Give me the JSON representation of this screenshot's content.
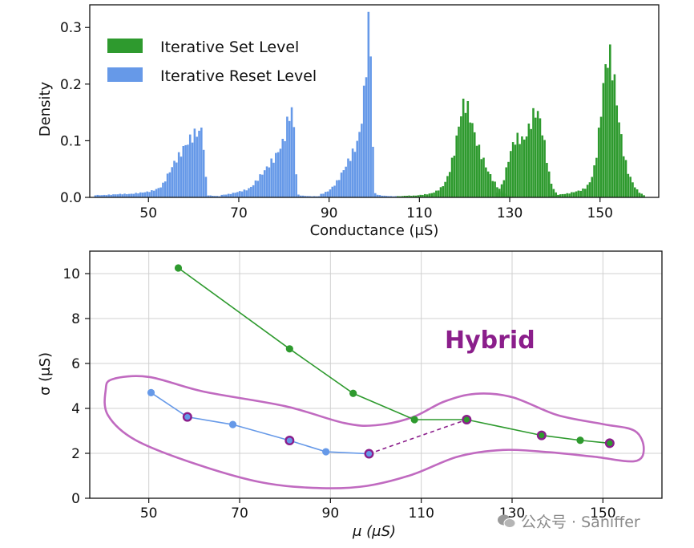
{
  "chart_data": [
    {
      "type": "bar",
      "subtype": "histogram",
      "xlabel": "Conductance (μS)",
      "ylabel": "Density",
      "xlim": [
        37,
        163
      ],
      "ylim": [
        0,
        0.34
      ],
      "xticks": [
        50,
        70,
        90,
        110,
        130,
        150
      ],
      "yticks": [
        0.0,
        0.1,
        0.2,
        0.3
      ],
      "ytick_labels": [
        "0.0",
        "0.1",
        "0.2",
        "0.3"
      ],
      "legend": {
        "placement": "top-left",
        "entries": [
          "Iterative Set Level",
          "Iterative Reset Level"
        ]
      },
      "bin_width": 0.5,
      "series": [
        {
          "name": "Iterative Set Level",
          "color": "#2e9a2e",
          "peaks": [
            {
              "x": [
                105,
                106,
                107,
                108,
                109,
                110,
                111,
                112,
                113,
                114,
                115,
                116,
                117,
                118,
                119,
                120,
                121,
                122,
                123,
                124,
                125,
                126,
                127,
                128,
                129,
                130
              ],
              "y": [
                0.002,
                0.002,
                0.003,
                0.003,
                0.003,
                0.004,
                0.005,
                0.006,
                0.008,
                0.012,
                0.018,
                0.03,
                0.055,
                0.09,
                0.14,
                0.17,
                0.15,
                0.12,
                0.09,
                0.07,
                0.05,
                0.035,
                0.022,
                0.012,
                0.006,
                0.003
              ]
            },
            {
              "x": [
                127,
                128,
                129,
                130,
                131,
                132,
                133,
                134,
                135,
                136,
                137,
                138,
                139,
                140,
                141
              ],
              "y": [
                0.006,
                0.015,
                0.04,
                0.075,
                0.1,
                0.105,
                0.1,
                0.115,
                0.14,
                0.155,
                0.13,
                0.08,
                0.03,
                0.01,
                0.003
              ]
            },
            {
              "x": [
                139,
                140,
                141,
                142,
                143,
                144,
                145,
                146,
                147,
                148,
                149,
                150,
                151,
                152,
                153,
                154,
                155,
                156,
                157,
                158,
                159,
                160
              ],
              "y": [
                0.003,
                0.004,
                0.005,
                0.006,
                0.007,
                0.009,
                0.011,
                0.013,
                0.018,
                0.03,
                0.06,
                0.13,
                0.22,
                0.255,
                0.22,
                0.15,
                0.09,
                0.05,
                0.03,
                0.015,
                0.007,
                0.003
              ]
            }
          ]
        },
        {
          "name": "Iterative Reset Level",
          "color": "#6699e8",
          "peaks": [
            {
              "x": [
                38,
                40,
                42,
                44,
                46,
                48,
                50,
                51,
                52,
                53,
                54,
                55,
                56,
                57,
                58,
                59,
                60,
                61,
                62,
                63,
                64,
                66
              ],
              "y": [
                0.004,
                0.004,
                0.005,
                0.006,
                0.006,
                0.008,
                0.01,
                0.012,
                0.015,
                0.02,
                0.035,
                0.05,
                0.065,
                0.075,
                0.09,
                0.1,
                0.11,
                0.115,
                0.12,
                0.004,
                0.003,
                0.002
              ]
            },
            {
              "x": [
                66,
                68,
                70,
                72,
                73,
                74,
                75,
                76,
                77,
                78,
                79,
                80,
                81,
                82,
                83,
                84,
                86,
                88
              ],
              "y": [
                0.004,
                0.006,
                0.01,
                0.014,
                0.02,
                0.03,
                0.04,
                0.05,
                0.06,
                0.07,
                0.085,
                0.1,
                0.14,
                0.16,
                0.005,
                0.003,
                0.002,
                0.002
              ]
            },
            {
              "x": [
                88,
                89,
                90,
                91,
                92,
                93,
                94,
                95,
                96,
                97,
                98,
                99,
                100,
                101,
                102,
                104,
                106
              ],
              "y": [
                0.005,
                0.008,
                0.012,
                0.02,
                0.03,
                0.045,
                0.06,
                0.075,
                0.09,
                0.12,
                0.2,
                0.34,
                0.008,
                0.004,
                0.003,
                0.002,
                0.002
              ]
            }
          ]
        }
      ]
    },
    {
      "type": "line",
      "xlabel": "μ (μS)",
      "ylabel": "σ (μS)",
      "xlim": [
        37,
        163
      ],
      "ylim": [
        0,
        11
      ],
      "xticks": [
        50,
        70,
        90,
        110,
        130,
        150
      ],
      "yticks": [
        0,
        2,
        4,
        6,
        8,
        10
      ],
      "grid": true,
      "annotation": "Hybrid",
      "series": [
        {
          "color": "#2e9a2e",
          "x": [
            56.5,
            81,
            95,
            108.5,
            120,
            136.5,
            145,
            151.5
          ],
          "y": [
            10.25,
            6.65,
            4.67,
            3.5,
            3.5,
            2.8,
            2.58,
            2.45
          ]
        },
        {
          "color": "#6699e8",
          "x": [
            50.5,
            58.5,
            68.5,
            81,
            89,
            98.5
          ],
          "y": [
            4.7,
            3.62,
            3.28,
            2.57,
            2.07,
            1.98
          ]
        },
        {
          "color": "#8b1e8b",
          "line_style": "dashed",
          "x": [
            98.5,
            120
          ],
          "y": [
            1.98,
            3.5
          ]
        }
      ],
      "hybrid_points": {
        "color": "#8b1e8b",
        "x": [
          58.5,
          81,
          98.5,
          120,
          136.5,
          151.5
        ],
        "y": [
          3.62,
          2.57,
          1.98,
          3.5,
          2.8,
          2.45
        ]
      },
      "enclosure_color": "#c06ac0"
    }
  ],
  "watermark": {
    "text": "公众号 · Saniffer"
  }
}
